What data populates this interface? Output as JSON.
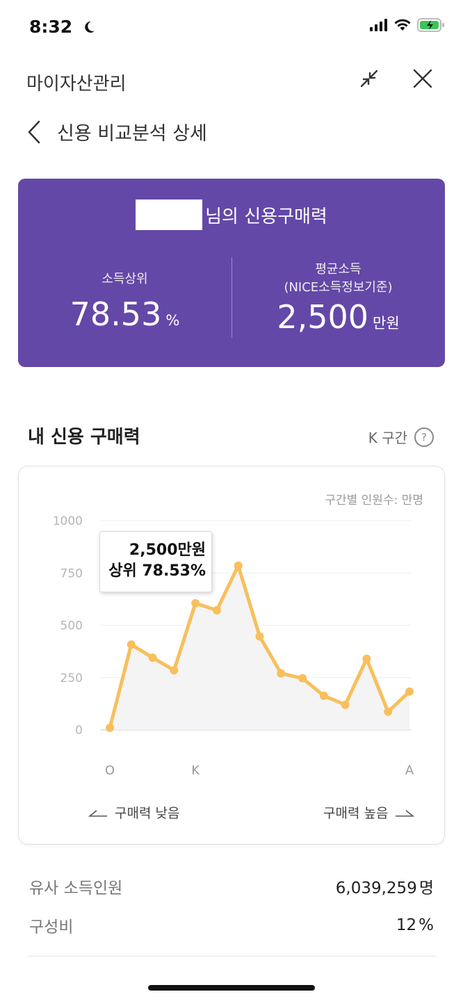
{
  "status_bar": {
    "time": "8:32"
  },
  "header": {
    "app_title": "마이자산관리",
    "page_title": "신용 비교분석 상세"
  },
  "summary_card": {
    "title_suffix": "님의 신용구매력",
    "left": {
      "label": "소득상위",
      "value": "78.53",
      "unit": "%"
    },
    "right": {
      "label_line1": "평균소득",
      "label_line2": "(NICE소득정보기준)",
      "value": "2,500",
      "unit": "만원"
    }
  },
  "section": {
    "title": "내 신용 구매력",
    "range_label": "K 구간",
    "help_symbol": "?"
  },
  "chart": {
    "unit_label": "구간별 인원수: 만명",
    "tooltip_line1": "2,500만원",
    "tooltip_line2": "상위 78.53%",
    "low_label": "구매력 낮음",
    "high_label": "구매력 높음"
  },
  "chart_data": {
    "type": "area",
    "x_tick_labels": [
      "O",
      "K",
      "A"
    ],
    "y_ticks": [
      "0",
      "250",
      "500",
      "750",
      "1000"
    ],
    "ylim": [
      0,
      1000
    ],
    "grid": true,
    "line_color": "#f8bf5c",
    "fill_color": "#f4f4f4",
    "series": [
      {
        "values": [
          10,
          408,
          345,
          285,
          605,
          572,
          785,
          447,
          270,
          247,
          163,
          120,
          340,
          87,
          183
        ]
      }
    ]
  },
  "stats": [
    {
      "label": "유사 소득인원",
      "value": "6,039,259",
      "unit": "명"
    },
    {
      "label": "구성비",
      "value": "12",
      "unit": "%"
    }
  ]
}
